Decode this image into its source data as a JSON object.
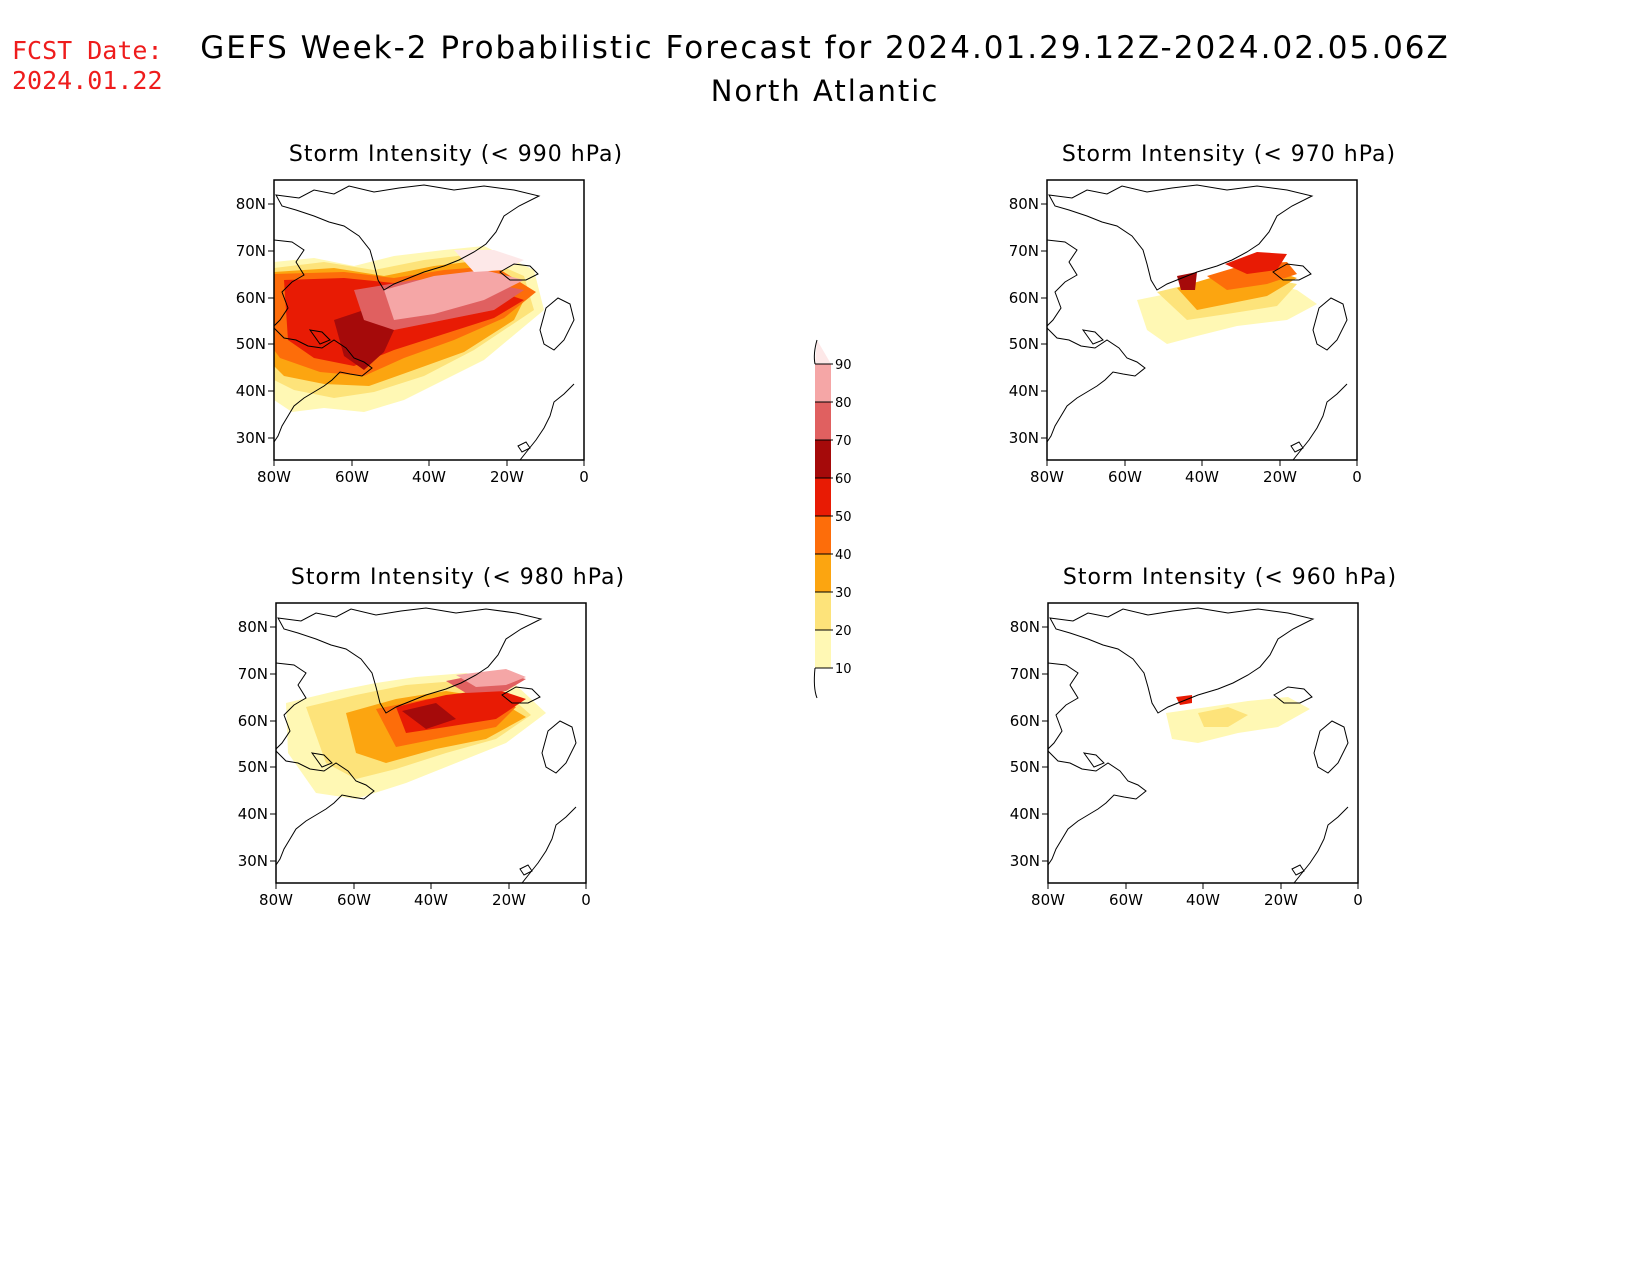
{
  "fcst_date": {
    "label": "FCST Date:",
    "value": "2024.01.22"
  },
  "title": {
    "line1": "GEFS Week-2 Probabilistic Forecast for 2024.01.29.12Z-2024.02.05.06Z",
    "line2": "North Atlantic"
  },
  "panels": [
    {
      "id": "p990",
      "title": "Storm Intensity (< 990 hPa)",
      "intensity": "strong"
    },
    {
      "id": "p980",
      "title": "Storm Intensity (< 980 hPa)",
      "intensity": "medium"
    },
    {
      "id": "p970",
      "title": "Storm Intensity (< 970 hPa)",
      "intensity": "weak"
    },
    {
      "id": "p960",
      "title": "Storm Intensity (< 960 hPa)",
      "intensity": "faint"
    }
  ],
  "axes": {
    "lat_labels": [
      "80N",
      "70N",
      "60N",
      "50N",
      "40N",
      "30N"
    ],
    "lon_labels": [
      "80W",
      "60W",
      "40W",
      "20W",
      "0"
    ]
  },
  "colorbar": {
    "labels": [
      "10",
      "20",
      "30",
      "40",
      "50",
      "60",
      "70",
      "80",
      "90"
    ],
    "colors": [
      "#fff8b4",
      "#fde37a",
      "#fca510",
      "#fd6d0a",
      "#e81b04",
      "#a50a0a",
      "#e06060",
      "#f5a6a6",
      "#fde8e8"
    ]
  }
}
